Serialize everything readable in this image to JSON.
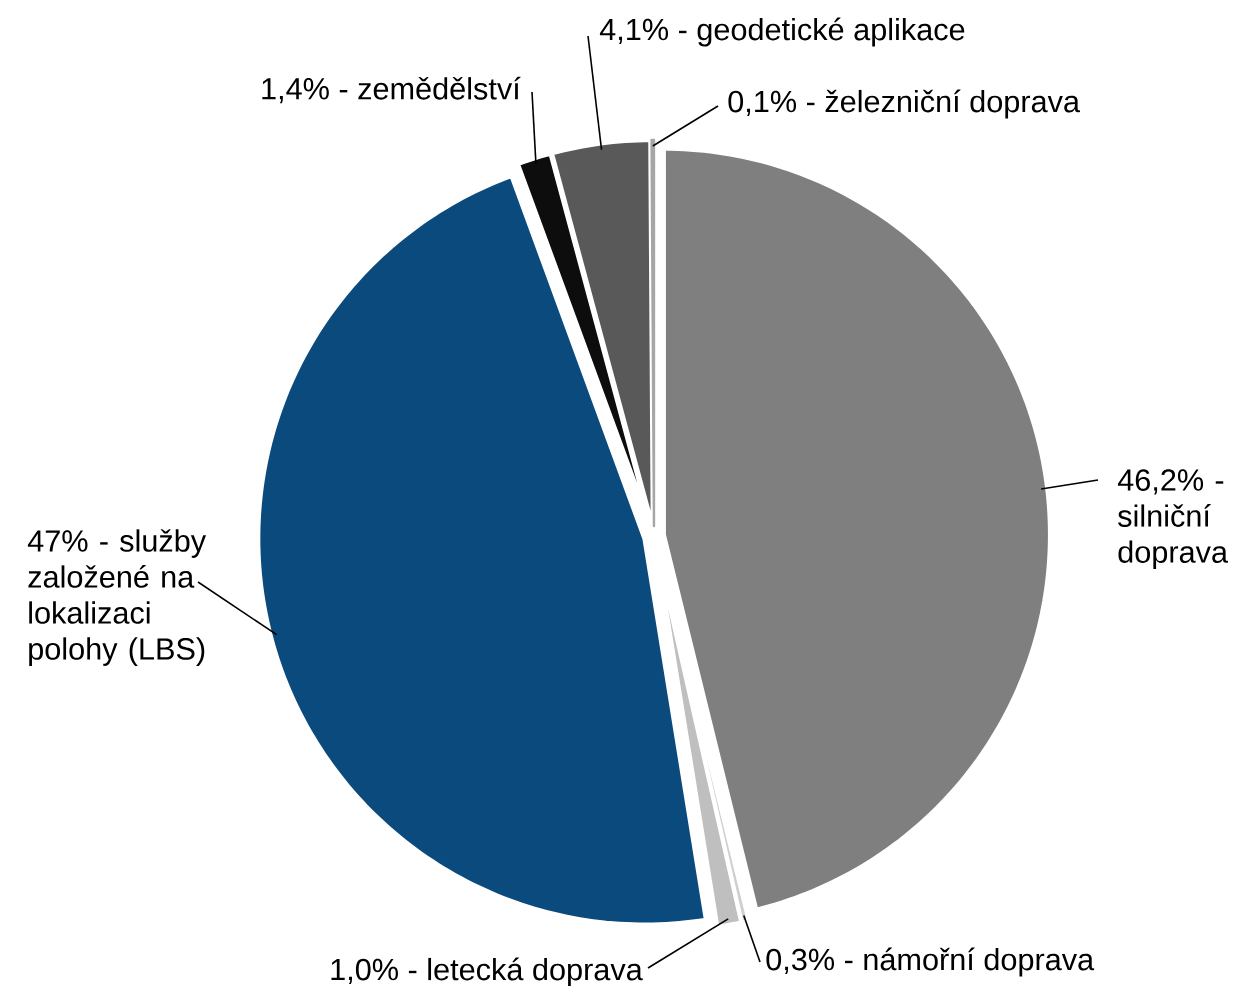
{
  "chart_data": {
    "type": "pie",
    "categories": [
      "46,2% - silniční doprava",
      "0,3% - námořní doprava",
      "1,0% - letecká doprava",
      "47% - služby založené na lokalizaci polohy (LBS)",
      "1,4% - zemědělství",
      "4,1% - geodetické aplikace",
      "0,1% - železniční doprava"
    ],
    "values": [
      46.2,
      0.3,
      1.0,
      47,
      1.4,
      4.1,
      0.1
    ],
    "colors": [
      "#7f7f7f",
      "#d0d0d0",
      "#bfbfbf",
      "#0b4a7d",
      "#0d0d0d",
      "#595959",
      "#a6a6a6"
    ]
  }
}
